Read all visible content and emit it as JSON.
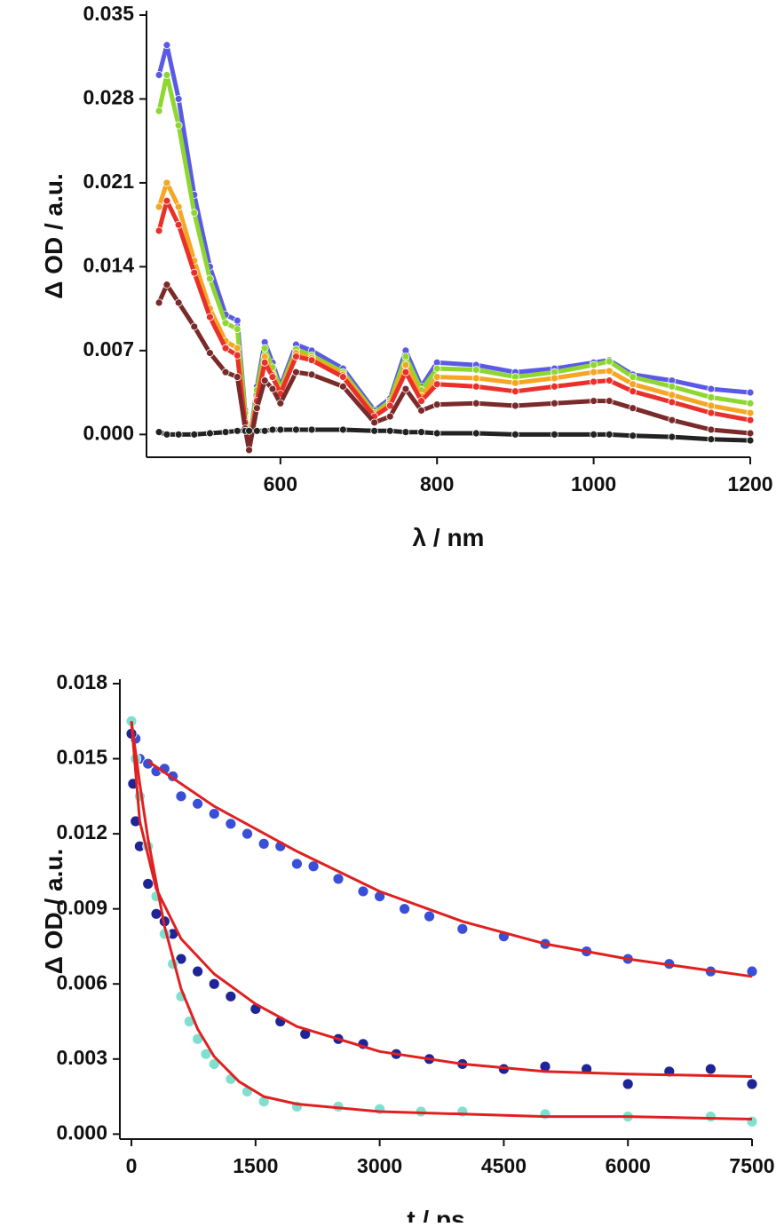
{
  "chart_data": [
    {
      "type": "line",
      "y_label": "Δ OD / a.u.",
      "x_label": "λ / nm",
      "xlim": [
        429,
        1200
      ],
      "ylim": [
        -0.0019,
        0.035
      ],
      "xticks": [
        600,
        800,
        1000,
        1200
      ],
      "yticks": [
        {
          "value": 0,
          "label": "0.000"
        },
        {
          "value": 0.007,
          "label": "0.007"
        },
        {
          "value": 0.014,
          "label": "0.014"
        },
        {
          "value": 0.021,
          "label": "0.021"
        },
        {
          "value": 0.028,
          "label": "0.028"
        },
        {
          "value": 0.035,
          "label": "0.035"
        }
      ],
      "series": [
        {
          "color": "#5a5ae6",
          "x": [
            445,
            455,
            470,
            490,
            510,
            530,
            545,
            555,
            560,
            570,
            580,
            590,
            600,
            620,
            640,
            680,
            720,
            740,
            760,
            780,
            800,
            850,
            900,
            950,
            1000,
            1020,
            1050,
            1100,
            1150,
            1200
          ],
          "values": [
            0.03,
            0.0325,
            0.028,
            0.02,
            0.014,
            0.01,
            0.0095,
            0.002,
            -0.001,
            0.004,
            0.0077,
            0.006,
            0.004,
            0.0075,
            0.007,
            0.0055,
            0.002,
            0.003,
            0.007,
            0.004,
            0.006,
            0.0058,
            0.0052,
            0.0055,
            0.006,
            0.0062,
            0.005,
            0.0045,
            0.0038,
            0.0035
          ]
        },
        {
          "color": "#8ed630",
          "x": [
            445,
            455,
            470,
            490,
            510,
            530,
            545,
            555,
            560,
            570,
            580,
            590,
            600,
            620,
            640,
            680,
            720,
            740,
            760,
            780,
            800,
            850,
            900,
            950,
            1000,
            1020,
            1050,
            1100,
            1150,
            1200
          ],
          "values": [
            0.027,
            0.03,
            0.0258,
            0.0185,
            0.013,
            0.0093,
            0.0088,
            0.0018,
            -0.001,
            0.0037,
            0.0072,
            0.0056,
            0.0038,
            0.0071,
            0.0066,
            0.0052,
            0.0018,
            0.0028,
            0.0065,
            0.0037,
            0.0055,
            0.0054,
            0.0048,
            0.0052,
            0.0058,
            0.0061,
            0.0048,
            0.004,
            0.0031,
            0.0026
          ]
        },
        {
          "color": "#f5a623",
          "x": [
            445,
            455,
            470,
            490,
            510,
            530,
            545,
            555,
            560,
            570,
            580,
            590,
            600,
            620,
            640,
            680,
            720,
            740,
            760,
            780,
            800,
            850,
            900,
            950,
            1000,
            1020,
            1050,
            1100,
            1150,
            1200
          ],
          "values": [
            0.019,
            0.021,
            0.019,
            0.0145,
            0.0105,
            0.0078,
            0.0072,
            0.0012,
            -0.0012,
            0.003,
            0.0065,
            0.005,
            0.0035,
            0.0068,
            0.0064,
            0.005,
            0.0016,
            0.0026,
            0.0058,
            0.0032,
            0.0048,
            0.0047,
            0.0043,
            0.0047,
            0.0052,
            0.0053,
            0.0042,
            0.0033,
            0.0024,
            0.0018
          ]
        },
        {
          "color": "#e8312a",
          "x": [
            445,
            455,
            470,
            490,
            510,
            530,
            545,
            555,
            560,
            570,
            580,
            590,
            600,
            620,
            640,
            680,
            720,
            740,
            760,
            780,
            800,
            850,
            900,
            950,
            1000,
            1020,
            1050,
            1100,
            1150,
            1200
          ],
          "values": [
            0.017,
            0.0195,
            0.0175,
            0.0135,
            0.0098,
            0.0072,
            0.0066,
            0.001,
            -0.0013,
            0.0028,
            0.006,
            0.0048,
            0.0034,
            0.0065,
            0.0062,
            0.0048,
            0.0015,
            0.0024,
            0.0052,
            0.0028,
            0.0042,
            0.004,
            0.0036,
            0.004,
            0.0044,
            0.0045,
            0.0036,
            0.0027,
            0.0018,
            0.0012
          ]
        },
        {
          "color": "#7a2a2a",
          "x": [
            445,
            455,
            470,
            490,
            510,
            530,
            545,
            555,
            560,
            570,
            580,
            590,
            600,
            620,
            640,
            680,
            720,
            740,
            760,
            780,
            800,
            850,
            900,
            950,
            1000,
            1020,
            1050,
            1100,
            1150,
            1200
          ],
          "values": [
            0.011,
            0.0125,
            0.011,
            0.009,
            0.0068,
            0.0052,
            0.0048,
            0.0005,
            -0.0013,
            0.0022,
            0.0045,
            0.0038,
            0.0026,
            0.0052,
            0.005,
            0.004,
            0.001,
            0.0015,
            0.0038,
            0.002,
            0.0025,
            0.0026,
            0.0024,
            0.0026,
            0.0028,
            0.0028,
            0.0022,
            0.0012,
            0.0004,
            0.0001
          ]
        },
        {
          "color": "#222222",
          "x": [
            445,
            455,
            470,
            490,
            510,
            530,
            545,
            555,
            560,
            570,
            580,
            590,
            600,
            620,
            640,
            680,
            720,
            740,
            760,
            780,
            800,
            850,
            900,
            950,
            1000,
            1020,
            1050,
            1100,
            1150,
            1200
          ],
          "values": [
            0.0002,
            0.0,
            0.0,
            0.0,
            0.0001,
            0.0002,
            0.0003,
            0.0003,
            0.0003,
            0.0003,
            0.0003,
            0.0004,
            0.0004,
            0.0004,
            0.0004,
            0.0004,
            0.0003,
            0.0003,
            0.0002,
            0.0002,
            0.0001,
            0.0001,
            0.0,
            0.0,
            0.0,
            0.0,
            -0.0001,
            -0.0002,
            -0.0004,
            -0.0005
          ]
        }
      ]
    },
    {
      "type": "scatter",
      "y_label": "Δ OD / a.u.",
      "x_label": "t / ps",
      "xlim": [
        -140,
        7500
      ],
      "ylim": [
        -0.0002,
        0.018
      ],
      "xticks": [
        0,
        1500,
        3000,
        4500,
        6000,
        7500
      ],
      "yticks": [
        {
          "value": 0,
          "label": "0.000"
        },
        {
          "value": 0.003,
          "label": "0.003"
        },
        {
          "value": 0.006,
          "label": "0.006"
        },
        {
          "value": 0.009,
          "label": "0.009"
        },
        {
          "value": 0.012,
          "label": "0.012"
        },
        {
          "value": 0.015,
          "label": "0.015"
        },
        {
          "value": 0.018,
          "label": "0.018"
        }
      ],
      "series": [
        {
          "color": "#3a4fd8",
          "style": "markers",
          "x": [
            0,
            50,
            100,
            200,
            300,
            400,
            500,
            600,
            800,
            1000,
            1200,
            1400,
            1600,
            1800,
            2000,
            2200,
            2500,
            2800,
            3000,
            3300,
            3600,
            4000,
            4500,
            5000,
            5500,
            6000,
            6500,
            7000,
            7500
          ],
          "values": [
            0.0165,
            0.0158,
            0.015,
            0.0148,
            0.0145,
            0.0146,
            0.0143,
            0.0135,
            0.0132,
            0.0128,
            0.0124,
            0.012,
            0.0116,
            0.0115,
            0.0108,
            0.0107,
            0.0102,
            0.0097,
            0.0095,
            0.009,
            0.0087,
            0.0082,
            0.0079,
            0.0076,
            0.0073,
            0.007,
            0.0068,
            0.0065,
            0.0065
          ]
        },
        {
          "color": "#1f2496",
          "style": "markers",
          "x": [
            0,
            20,
            50,
            100,
            200,
            300,
            400,
            500,
            600,
            800,
            1000,
            1200,
            1500,
            1800,
            2100,
            2500,
            2800,
            3200,
            3600,
            4000,
            4500,
            5000,
            5500,
            6000,
            6500,
            7000,
            7500
          ],
          "values": [
            0.016,
            0.014,
            0.0125,
            0.0115,
            0.01,
            0.0088,
            0.0085,
            0.008,
            0.007,
            0.0065,
            0.006,
            0.0055,
            0.005,
            0.0045,
            0.004,
            0.0038,
            0.0036,
            0.0032,
            0.003,
            0.0028,
            0.0026,
            0.0027,
            0.0026,
            0.002,
            0.0025,
            0.0026,
            0.002
          ]
        },
        {
          "color": "#7fe0d0",
          "style": "markers",
          "x": [
            0,
            50,
            100,
            200,
            300,
            400,
            500,
            600,
            700,
            800,
            900,
            1000,
            1200,
            1400,
            1600,
            2000,
            2500,
            3000,
            3500,
            4000,
            5000,
            6000,
            7000,
            7500
          ],
          "values": [
            0.0165,
            0.015,
            0.0135,
            0.0115,
            0.0095,
            0.008,
            0.0068,
            0.0055,
            0.0045,
            0.0038,
            0.0032,
            0.0028,
            0.0022,
            0.0017,
            0.0013,
            0.0011,
            0.0011,
            0.001,
            0.0009,
            0.0009,
            0.0008,
            0.0007,
            0.0007,
            0.0005
          ]
        },
        {
          "color": "#e02020",
          "style": "line",
          "x": [
            200,
            1000,
            2000,
            3000,
            4000,
            5000,
            6000,
            7500
          ],
          "values": [
            0.0149,
            0.0131,
            0.0113,
            0.0097,
            0.0085,
            0.0076,
            0.007,
            0.0063
          ]
        },
        {
          "color": "#e02020",
          "style": "line",
          "x": [
            0,
            100,
            300,
            600,
            1000,
            1500,
            2000,
            3000,
            4000,
            5000,
            6000,
            7500
          ],
          "values": [
            0.0165,
            0.0125,
            0.0098,
            0.0078,
            0.0064,
            0.0052,
            0.0043,
            0.0033,
            0.0028,
            0.0025,
            0.0024,
            0.0023
          ]
        },
        {
          "color": "#e02020",
          "style": "line",
          "x": [
            0,
            100,
            200,
            400,
            600,
            800,
            1000,
            1300,
            1600,
            2000,
            3000,
            4000,
            5000,
            6000,
            7500
          ],
          "values": [
            0.0165,
            0.014,
            0.0118,
            0.0083,
            0.0058,
            0.0042,
            0.0031,
            0.0021,
            0.0015,
            0.0012,
            0.0009,
            0.0008,
            0.0007,
            0.0007,
            0.0006
          ]
        }
      ]
    }
  ]
}
